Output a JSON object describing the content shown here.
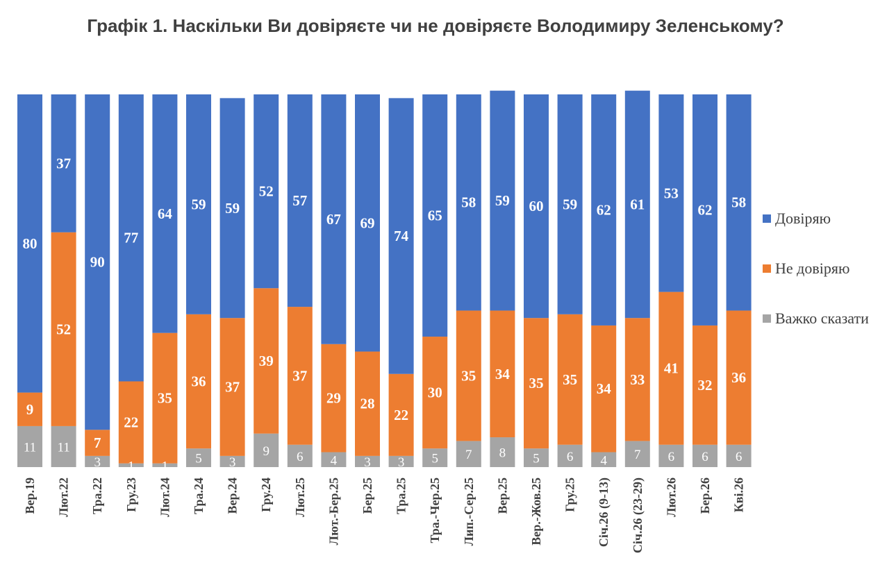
{
  "chart_data": {
    "type": "bar",
    "stacked": true,
    "title": "Графік 1. Наскільки Ви довіряєте чи не довіряєте Володимиру Зеленському?",
    "categories": [
      "Вер.19",
      "Лют.22",
      "Тра.22",
      "Гру.23",
      "Лют.24",
      "Тра.24",
      "Вер.24",
      "Гру.24",
      "Лют.25",
      "Лют.-Бер.25",
      "Бер.25",
      "Тра.25",
      "Тра.-Чер.25",
      "Лип.-Сер.25",
      "Вер.25",
      "Вер.-Жов.25",
      "Гру.25",
      "Січ.26 (9-13)",
      "Січ.26 (23-29)",
      "Лют.26",
      "Бер.26",
      "Кві.26"
    ],
    "series": [
      {
        "name": "Важко сказати",
        "color": "#a5a5a5",
        "values": [
          11,
          11,
          3,
          1,
          1,
          5,
          3,
          9,
          6,
          4,
          3,
          3,
          5,
          7,
          8,
          5,
          6,
          4,
          7,
          6,
          6,
          6
        ]
      },
      {
        "name": "Не довіряю",
        "color": "#ed7d31",
        "values": [
          9,
          52,
          7,
          22,
          35,
          36,
          37,
          39,
          37,
          29,
          28,
          22,
          30,
          35,
          34,
          35,
          35,
          34,
          33,
          41,
          32,
          36
        ]
      },
      {
        "name": "Довіряю",
        "color": "#4472c4",
        "values": [
          80,
          37,
          90,
          77,
          64,
          59,
          59,
          52,
          57,
          67,
          69,
          74,
          65,
          58,
          59,
          60,
          59,
          62,
          61,
          53,
          62,
          58
        ]
      }
    ],
    "legend_order": [
      "Довіряю",
      "Не довіряю",
      "Важко сказати"
    ],
    "legend_position": "right",
    "ylim": [
      0,
      100
    ],
    "grid": false
  }
}
